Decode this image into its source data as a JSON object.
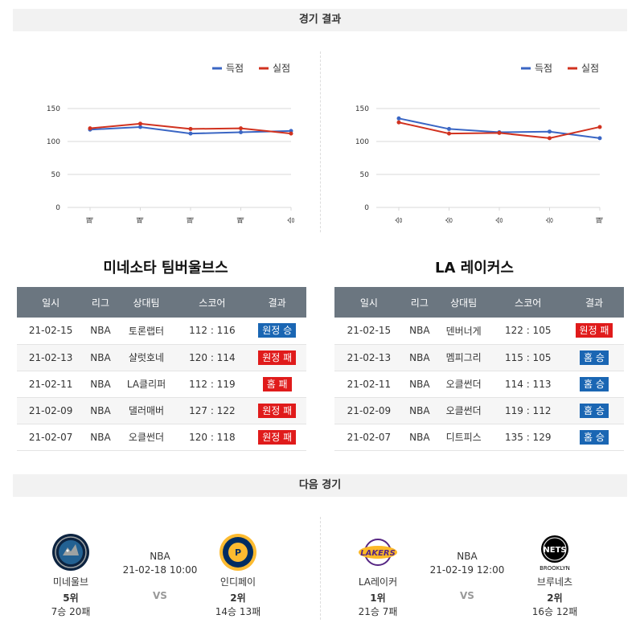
{
  "sections": {
    "results_title": "경기 결과",
    "next_title": "다음 경기"
  },
  "legend": {
    "scored": "득점",
    "conceded": "실점"
  },
  "colors": {
    "scored": "#3a66c4",
    "conceded": "#d1321f",
    "win": "#1a66b3",
    "loss": "#e01b1b",
    "header": "#6b7680"
  },
  "chart_data": [
    {
      "type": "line",
      "categories": [
        "패",
        "패",
        "패",
        "패",
        "승"
      ],
      "yticks": [
        0,
        50,
        100,
        150
      ],
      "ylim": [
        0,
        150
      ],
      "series": [
        {
          "name": "득점",
          "values": [
            118,
            122,
            112,
            114,
            116
          ]
        },
        {
          "name": "실점",
          "values": [
            120,
            127,
            119,
            120,
            112
          ]
        }
      ],
      "legend": "top-right"
    },
    {
      "type": "line",
      "categories": [
        "승",
        "승",
        "승",
        "승",
        "패"
      ],
      "yticks": [
        0,
        50,
        100,
        150
      ],
      "ylim": [
        0,
        150
      ],
      "series": [
        {
          "name": "득점",
          "values": [
            135,
            119,
            114,
            115,
            105
          ]
        },
        {
          "name": "실점",
          "values": [
            129,
            112,
            113,
            105,
            122
          ]
        }
      ],
      "legend": "top-right"
    }
  ],
  "table_headers": [
    "일시",
    "리그",
    "상대팀",
    "스코어",
    "결과"
  ],
  "teams": [
    {
      "name": "미네소타 팀버울브스",
      "games": [
        {
          "date": "21-02-15",
          "league": "NBA",
          "opponent": "토론랩터",
          "score": "112 : 116",
          "result": "원정 승",
          "win": true
        },
        {
          "date": "21-02-13",
          "league": "NBA",
          "opponent": "샬럿호네",
          "score": "120 : 114",
          "result": "원정 패",
          "win": false
        },
        {
          "date": "21-02-11",
          "league": "NBA",
          "opponent": "LA클리퍼",
          "score": "112 : 119",
          "result": "홈 패",
          "win": false
        },
        {
          "date": "21-02-09",
          "league": "NBA",
          "opponent": "댈러매버",
          "score": "127 : 122",
          "result": "원정 패",
          "win": false
        },
        {
          "date": "21-02-07",
          "league": "NBA",
          "opponent": "오클썬더",
          "score": "120 : 118",
          "result": "원정 패",
          "win": false
        }
      ]
    },
    {
      "name": "LA 레이커스",
      "games": [
        {
          "date": "21-02-15",
          "league": "NBA",
          "opponent": "덴버너게",
          "score": "122 : 105",
          "result": "원정 패",
          "win": false
        },
        {
          "date": "21-02-13",
          "league": "NBA",
          "opponent": "멤피그리",
          "score": "115 : 105",
          "result": "홈 승",
          "win": true
        },
        {
          "date": "21-02-11",
          "league": "NBA",
          "opponent": "오클썬더",
          "score": "114 : 113",
          "result": "홈 승",
          "win": true
        },
        {
          "date": "21-02-09",
          "league": "NBA",
          "opponent": "오클썬더",
          "score": "119 : 112",
          "result": "홈 승",
          "win": true
        },
        {
          "date": "21-02-07",
          "league": "NBA",
          "opponent": "디트피스",
          "score": "135 : 129",
          "result": "홈 승",
          "win": true
        }
      ]
    }
  ],
  "next_games": [
    {
      "home": {
        "name": "미네울브",
        "rank": "5위",
        "record": "7승 20패",
        "logo": "timberwolves-logo"
      },
      "league": "NBA",
      "datetime": "21-02-18 10:00",
      "vs": "VS",
      "away": {
        "name": "인디페이",
        "rank": "2위",
        "record": "14승 13패",
        "logo": "pacers-logo"
      }
    },
    {
      "home": {
        "name": "LA레이커",
        "rank": "1위",
        "record": "21승 7패",
        "logo": "lakers-logo"
      },
      "league": "NBA",
      "datetime": "21-02-19 12:00",
      "vs": "VS",
      "away": {
        "name": "브루네츠",
        "rank": "2위",
        "record": "16승 12패",
        "logo": "nets-logo",
        "logo_text": "BROOKLYN"
      }
    }
  ]
}
